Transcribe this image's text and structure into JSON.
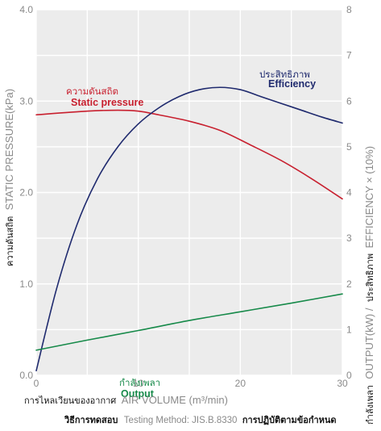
{
  "chart_data": {
    "type": "line",
    "x_axis": {
      "label_th": "การไหลเวียนของอากาศ",
      "label_en": "AIR VOLUME (m³/min)",
      "range": [
        0,
        30
      ],
      "ticks": [
        "0",
        "10",
        "20",
        "30"
      ]
    },
    "y_left": {
      "label_th": "ความดันสถิต",
      "label_en": "STATIC PRESSURE(kPa)",
      "range": [
        0,
        4
      ],
      "ticks": [
        "0.0",
        "1.0",
        "2.0",
        "3.0",
        "4.0"
      ]
    },
    "y_right": {
      "label_th": "กำลังเพลา",
      "label_en": "OUTPUT(kW) /",
      "label_th2": "ประสิทธิภาพ",
      "label_en2": "EFFICIENCY × (10%)",
      "range": [
        0,
        8
      ],
      "ticks": [
        "0",
        "1",
        "2",
        "3",
        "4",
        "5",
        "6",
        "7",
        "8"
      ]
    },
    "grid": true,
    "series": [
      {
        "name": "Static pressure",
        "name_th": "ความดันสถิต",
        "axis": "left",
        "color": "#c8202f",
        "x": [
          0,
          5,
          8,
          10,
          12,
          15,
          18,
          21,
          24,
          27,
          30
        ],
        "y": [
          2.85,
          2.89,
          2.9,
          2.89,
          2.85,
          2.78,
          2.68,
          2.52,
          2.35,
          2.15,
          1.93
        ]
      },
      {
        "name": "Efficiency",
        "name_th": "ประสิทธิภาพ",
        "axis": "right",
        "color": "#1f2a6e",
        "x": [
          0,
          2,
          4,
          6,
          8,
          10,
          12,
          14,
          16,
          18,
          20,
          22,
          24,
          26,
          28,
          30
        ],
        "y": [
          0.1,
          1.9,
          3.3,
          4.3,
          5.0,
          5.5,
          5.85,
          6.1,
          6.25,
          6.3,
          6.25,
          6.1,
          5.95,
          5.8,
          5.65,
          5.52
        ]
      },
      {
        "name": "Output",
        "name_th": "กำลังเพลา",
        "axis": "right",
        "color": "#178a4a",
        "x": [
          0,
          5,
          10,
          15,
          20,
          25,
          30
        ],
        "y": [
          0.55,
          0.77,
          0.98,
          1.2,
          1.39,
          1.58,
          1.78
        ]
      }
    ]
  },
  "footer": {
    "label_th": "วิธีการทดสอบ",
    "method": "Testing Method: JIS.B.8330",
    "suffix_th": "การปฏิบัติตามข้อกำหนด"
  }
}
